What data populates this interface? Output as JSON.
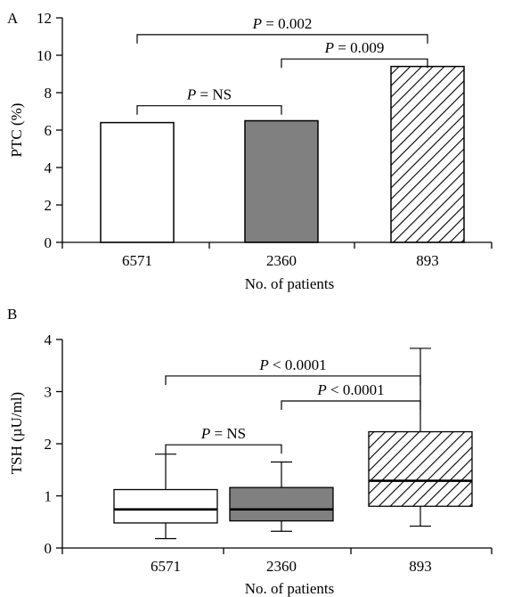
{
  "chart_data": [
    {
      "panel": "A",
      "type": "bar",
      "categories": [
        "6571",
        "2360",
        "893"
      ],
      "values": [
        6.4,
        6.5,
        9.4
      ],
      "fills": [
        "white",
        "gray",
        "hatched"
      ],
      "ylabel": "PTC (%)",
      "xlabel": "No. of patients",
      "ylim": [
        0,
        12
      ],
      "yticks": [
        "0",
        "2",
        "4",
        "6",
        "8",
        "10",
        "12"
      ],
      "grid": false,
      "annotations": [
        {
          "from": 0,
          "to": 2,
          "label": "P = 0.002",
          "level": 11.1
        },
        {
          "from": 1,
          "to": 2,
          "label": "P = 0.009",
          "level": 9.8
        },
        {
          "from": 0,
          "to": 1,
          "label": "P = NS",
          "level": 7.3
        }
      ]
    },
    {
      "panel": "B",
      "type": "box",
      "categories": [
        "6571",
        "2360",
        "893"
      ],
      "boxes": [
        {
          "whisker_low": 0.18,
          "q1": 0.48,
          "median": 0.74,
          "q3": 1.12,
          "whisker_high": 1.8
        },
        {
          "whisker_low": 0.32,
          "q1": 0.52,
          "median": 0.74,
          "q3": 1.16,
          "whisker_high": 1.65
        },
        {
          "whisker_low": 0.42,
          "q1": 0.8,
          "median": 1.29,
          "q3": 2.23,
          "whisker_high": 3.83
        }
      ],
      "fills": [
        "white",
        "gray",
        "hatched"
      ],
      "ylabel": "TSH (µU/ml)",
      "xlabel": "No. of patients",
      "ylim": [
        0,
        4
      ],
      "yticks": [
        "0",
        "1",
        "2",
        "3",
        "4"
      ],
      "grid": false,
      "annotations": [
        {
          "from": 0,
          "to": 2,
          "label": "P < 0.0001",
          "level": 3.3
        },
        {
          "from": 1,
          "to": 2,
          "label": "P < 0.0001",
          "level": 2.82
        },
        {
          "from": 0,
          "to": 1,
          "label": "P = NS",
          "level": 1.98
        }
      ]
    }
  ],
  "colors": {
    "gray": "#808080",
    "white": "#ffffff",
    "stroke": "#000000"
  }
}
